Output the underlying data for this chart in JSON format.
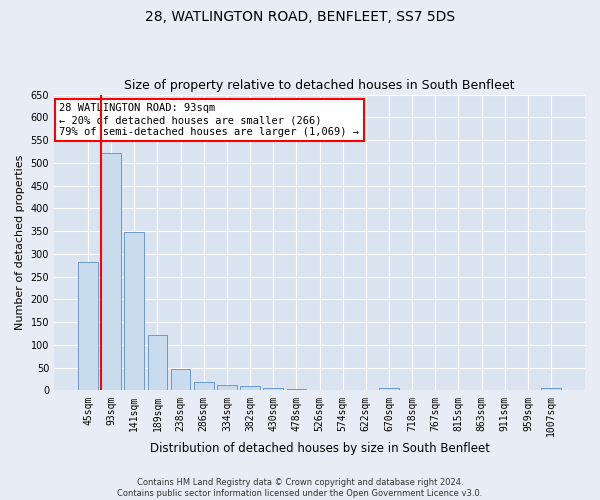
{
  "title": "28, WATLINGTON ROAD, BENFLEET, SS7 5DS",
  "subtitle": "Size of property relative to detached houses in South Benfleet",
  "xlabel": "Distribution of detached houses by size in South Benfleet",
  "ylabel": "Number of detached properties",
  "footer_line1": "Contains HM Land Registry data © Crown copyright and database right 2024.",
  "footer_line2": "Contains public sector information licensed under the Open Government Licence v3.0.",
  "categories": [
    "45sqm",
    "93sqm",
    "141sqm",
    "189sqm",
    "238sqm",
    "286sqm",
    "334sqm",
    "382sqm",
    "430sqm",
    "478sqm",
    "526sqm",
    "574sqm",
    "622sqm",
    "670sqm",
    "718sqm",
    "767sqm",
    "815sqm",
    "863sqm",
    "911sqm",
    "959sqm",
    "1007sqm"
  ],
  "values": [
    283,
    522,
    347,
    122,
    48,
    18,
    13,
    9,
    6,
    4,
    0,
    0,
    0,
    6,
    0,
    0,
    0,
    0,
    0,
    0,
    5
  ],
  "bar_color": "#c9dcee",
  "bar_edge_color": "#5b8ec4",
  "vline_color": "red",
  "annotation_text": "28 WATLINGTON ROAD: 93sqm\n← 20% of detached houses are smaller (266)\n79% of semi-detached houses are larger (1,069) →",
  "annotation_box_color": "white",
  "annotation_box_edge_color": "red",
  "ylim": [
    0,
    650
  ],
  "yticks": [
    0,
    50,
    100,
    150,
    200,
    250,
    300,
    350,
    400,
    450,
    500,
    550,
    600,
    650
  ],
  "background_color": "#e8edf5",
  "plot_background_color": "#dae4f0",
  "grid_color": "white",
  "title_fontsize": 10,
  "subtitle_fontsize": 9,
  "xlabel_fontsize": 8.5,
  "ylabel_fontsize": 8,
  "tick_fontsize": 7,
  "annotation_fontsize": 7.5,
  "footer_fontsize": 6
}
